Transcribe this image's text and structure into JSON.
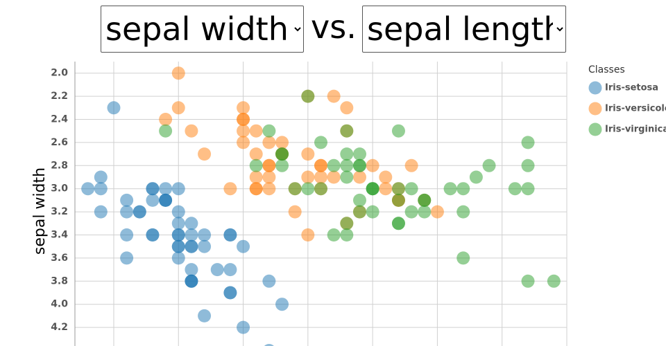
{
  "chart_data": {
    "type": "scatter",
    "x_select": "sepal length",
    "y_select": "sepal width",
    "connector": "vs.",
    "y_label": "sepal width",
    "legend_title": "Classes",
    "xlim": [
      4.2,
      8.0
    ],
    "xticks": [
      4.5,
      5,
      5.5,
      6,
      6.5,
      7,
      7.5,
      8
    ],
    "ylim": [
      1.9,
      4.4
    ],
    "y_inverted": true,
    "yticks": [
      {
        "value": 2,
        "label": "2.0"
      },
      2.2,
      2.4,
      2.6,
      2.8,
      {
        "value": 3,
        "label": "3.0"
      },
      3.2,
      3.4,
      3.6,
      3.8,
      {
        "value": 4,
        "label": "4.0"
      },
      4.2
    ],
    "grid": true,
    "legend": "right",
    "series": [
      {
        "name": "Iris-setosa",
        "color": "#1f77b4",
        "x": [
          5.1,
          4.9,
          4.7,
          4.6,
          5.0,
          5.4,
          4.6,
          5.0,
          4.4,
          4.9,
          5.4,
          4.8,
          4.8,
          4.3,
          5.8,
          5.7,
          5.4,
          5.1,
          5.7,
          5.1,
          5.4,
          5.1,
          4.6,
          5.1,
          4.8,
          5.0,
          5.0,
          5.2,
          5.2,
          4.7,
          4.8,
          5.4,
          5.2,
          5.5,
          4.9,
          5.0,
          5.5,
          4.9,
          4.4,
          5.1,
          5.0,
          4.5,
          4.4,
          5.0,
          5.1,
          4.8,
          5.1,
          4.6,
          5.3,
          5.0
        ],
        "values": [
          3.5,
          3.0,
          3.2,
          3.1,
          3.6,
          3.9,
          3.4,
          3.4,
          2.9,
          3.1,
          3.7,
          3.4,
          3.0,
          3.0,
          4.0,
          4.4,
          3.9,
          3.5,
          3.8,
          3.8,
          3.4,
          3.7,
          3.6,
          3.3,
          3.4,
          3.0,
          3.4,
          3.5,
          3.4,
          3.2,
          3.1,
          3.4,
          4.1,
          4.2,
          3.1,
          3.2,
          3.5,
          3.1,
          3.0,
          3.4,
          3.5,
          2.3,
          3.2,
          3.5,
          3.8,
          3.0,
          3.8,
          3.2,
          3.7,
          3.3
        ]
      },
      {
        "name": "Iris-versicolor",
        "color": "#ff7f0e",
        "x": [
          7.0,
          6.4,
          6.9,
          5.5,
          6.5,
          5.7,
          6.3,
          4.9,
          6.6,
          5.2,
          5.0,
          5.9,
          6.0,
          6.1,
          5.6,
          6.7,
          5.6,
          5.8,
          6.2,
          5.6,
          5.9,
          6.1,
          6.3,
          6.1,
          6.4,
          6.6,
          6.8,
          6.7,
          6.0,
          5.7,
          5.5,
          5.5,
          5.8,
          6.0,
          5.4,
          6.0,
          6.7,
          6.3,
          5.6,
          5.5,
          5.5,
          6.1,
          5.8,
          5.0,
          5.6,
          5.7,
          5.7,
          6.2,
          5.1,
          5.7
        ],
        "values": [
          3.2,
          3.2,
          3.1,
          2.3,
          2.8,
          2.8,
          3.3,
          2.4,
          2.9,
          2.7,
          2.0,
          3.0,
          2.2,
          2.9,
          2.9,
          3.1,
          3.0,
          2.7,
          2.2,
          2.5,
          3.2,
          2.8,
          2.5,
          2.8,
          2.9,
          3.0,
          2.8,
          3.0,
          2.9,
          2.6,
          2.4,
          2.4,
          2.7,
          2.7,
          3.0,
          3.4,
          3.1,
          2.3,
          3.0,
          2.5,
          2.6,
          3.0,
          2.6,
          2.3,
          2.7,
          3.0,
          2.9,
          2.9,
          2.5,
          2.8
        ]
      },
      {
        "name": "Iris-virginica",
        "color": "#2ca02c",
        "x": [
          6.3,
          5.8,
          7.1,
          6.3,
          6.5,
          7.6,
          4.9,
          7.3,
          6.7,
          7.2,
          6.5,
          6.4,
          6.8,
          5.7,
          5.8,
          6.4,
          6.5,
          7.7,
          7.7,
          6.0,
          6.9,
          5.6,
          7.7,
          6.3,
          6.7,
          7.2,
          6.2,
          6.1,
          6.4,
          7.2,
          7.4,
          7.9,
          6.4,
          6.3,
          6.1,
          7.7,
          6.3,
          6.4,
          6.0,
          6.9,
          6.7,
          6.9,
          5.8,
          6.8,
          6.7,
          6.7,
          6.3,
          6.5,
          6.2,
          5.9
        ],
        "values": [
          3.3,
          2.7,
          3.0,
          2.9,
          3.0,
          3.0,
          2.5,
          2.9,
          2.5,
          3.6,
          3.2,
          2.7,
          3.0,
          2.5,
          2.8,
          3.2,
          3.0,
          3.8,
          2.6,
          2.2,
          3.2,
          2.8,
          2.8,
          2.7,
          3.3,
          3.2,
          2.8,
          3.0,
          2.8,
          3.0,
          2.8,
          3.8,
          2.8,
          2.8,
          2.6,
          3.0,
          3.4,
          3.1,
          3.0,
          3.1,
          3.1,
          3.1,
          2.7,
          3.2,
          3.3,
          3.0,
          2.5,
          3.0,
          3.4,
          3.0
        ]
      }
    ]
  }
}
